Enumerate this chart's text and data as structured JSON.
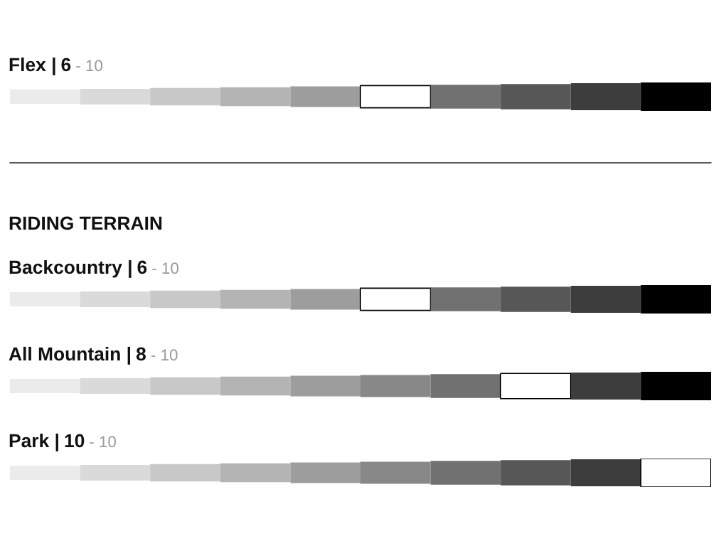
{
  "chart_data": [
    {
      "type": "other",
      "title": "Flex |",
      "value_labels": [
        "6"
      ],
      "annotations": [
        "- 10"
      ],
      "values": [
        6
      ]
    },
    {
      "type": "other",
      "subtitle": "RIDING TERRAIN",
      "title": "Backcountry |",
      "value_labels": [
        "6"
      ],
      "annotations": [
        "- 10"
      ],
      "values": [
        6
      ]
    },
    {
      "type": "other",
      "title": "All Mountain |",
      "value_labels": [
        "8"
      ],
      "annotations": [
        "- 10"
      ],
      "values": [
        8
      ]
    },
    {
      "type": "other",
      "title": "Park |",
      "value_labels": [
        "10"
      ],
      "annotations": [
        "- 10"
      ],
      "values": [
        10
      ]
    }
  ]
}
